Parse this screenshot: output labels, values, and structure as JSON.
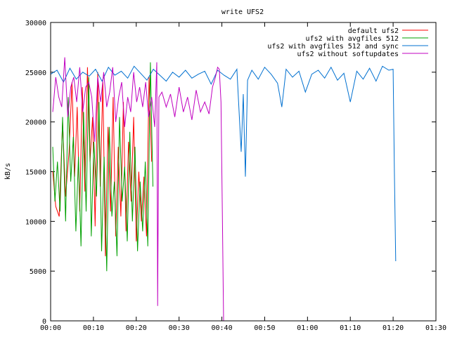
{
  "chart_data": {
    "type": "line",
    "title": "write UFS2",
    "xlabel": "",
    "ylabel": "kB/s",
    "xlim": [
      0,
      90
    ],
    "ylim": [
      0,
      30000
    ],
    "grid": false,
    "legend_position": "top-right",
    "x_ticks": [
      {
        "value": 0,
        "label": "00:00"
      },
      {
        "value": 10,
        "label": "00:10"
      },
      {
        "value": 20,
        "label": "00:20"
      },
      {
        "value": 30,
        "label": "00:30"
      },
      {
        "value": 40,
        "label": "00:40"
      },
      {
        "value": 50,
        "label": "00:50"
      },
      {
        "value": 60,
        "label": "01:00"
      },
      {
        "value": 70,
        "label": "01:10"
      },
      {
        "value": 80,
        "label": "01:20"
      },
      {
        "value": 90,
        "label": "01:30"
      }
    ],
    "y_ticks": [
      {
        "value": 0,
        "label": "0"
      },
      {
        "value": 5000,
        "label": "5000"
      },
      {
        "value": 10000,
        "label": "10000"
      },
      {
        "value": 15000,
        "label": "15000"
      },
      {
        "value": 20000,
        "label": "20000"
      },
      {
        "value": 25000,
        "label": "25000"
      },
      {
        "value": 30000,
        "label": "30000"
      }
    ],
    "series": [
      {
        "name": "default ufs2",
        "color": "#ff0000",
        "x": [
          0.5,
          1.2,
          2.0,
          2.8,
          3.5,
          4.3,
          5.0,
          5.6,
          6.2,
          6.8,
          7.4,
          8.0,
          8.6,
          9.2,
          9.8,
          10.4,
          11.0,
          11.6,
          12.2,
          12.8,
          13.4,
          14.0,
          14.6,
          15.2,
          15.8,
          16.4,
          17.0,
          17.6,
          18.2,
          18.8,
          19.4,
          20.0,
          20.6,
          21.2,
          21.8,
          22.4,
          23.0,
          23.6
        ],
        "y": [
          15000,
          11500,
          10500,
          20000,
          12500,
          17000,
          24000,
          14500,
          21500,
          11000,
          23500,
          13000,
          25500,
          16000,
          20500,
          9500,
          25000,
          13500,
          24000,
          6500,
          19500,
          11000,
          22500,
          8500,
          17500,
          10500,
          22000,
          9000,
          18000,
          12000,
          20500,
          8000,
          15000,
          10000,
          14500,
          8500,
          24500,
          16000
        ]
      },
      {
        "name": "ufs2 with avgfiles 512",
        "color": "#00a000",
        "x": [
          0.5,
          1.0,
          1.6,
          2.2,
          2.8,
          3.5,
          4.1,
          4.7,
          5.3,
          5.9,
          6.5,
          7.1,
          7.7,
          8.3,
          8.9,
          9.5,
          10.1,
          10.7,
          11.3,
          11.9,
          12.5,
          13.1,
          13.7,
          14.3,
          14.9,
          15.5,
          16.1,
          16.7,
          17.3,
          17.9,
          18.5,
          19.1,
          19.7,
          20.3,
          20.9,
          21.5,
          22.1,
          22.7,
          23.3,
          23.9
        ],
        "y": [
          17500,
          12000,
          16000,
          11000,
          20500,
          10000,
          22500,
          14000,
          18500,
          9000,
          16500,
          7500,
          21000,
          11000,
          24500,
          8500,
          18000,
          12500,
          22000,
          7000,
          16500,
          5000,
          19500,
          10500,
          14000,
          6500,
          20500,
          12000,
          15500,
          8000,
          19000,
          10000,
          17500,
          7000,
          14000,
          9000,
          16000,
          7500,
          26000,
          13500
        ]
      },
      {
        "name": "ufs2 with avgfiles 512 and sync",
        "color": "#0070d0",
        "x": [
          0,
          1.5,
          3.0,
          4.5,
          6.0,
          7.5,
          9.0,
          10.5,
          12.0,
          13.5,
          15.0,
          16.5,
          18.0,
          19.5,
          21.0,
          22.5,
          24.0,
          25.5,
          27.0,
          28.5,
          30.0,
          31.5,
          33.0,
          34.5,
          36.0,
          37.5,
          39.0,
          40.5,
          42.0,
          43.5,
          44.5,
          45.0,
          45.5,
          46.0,
          47.0,
          48.5,
          50.0,
          51.5,
          53.0,
          54.0,
          55.0,
          56.5,
          58.0,
          59.5,
          61.0,
          62.5,
          64.0,
          65.5,
          67.0,
          68.5,
          70.0,
          71.5,
          73.0,
          74.5,
          76.0,
          77.5,
          79.0,
          80.0,
          80.3,
          80.6
        ],
        "y": [
          24800,
          25200,
          24000,
          25400,
          24300,
          25000,
          24600,
          25300,
          24100,
          25500,
          24700,
          25100,
          24400,
          25600,
          24900,
          24200,
          25300,
          24700,
          24100,
          25000,
          24500,
          25200,
          24400,
          24800,
          25100,
          23800,
          25200,
          24700,
          24300,
          25300,
          17000,
          22800,
          14500,
          24200,
          25200,
          24300,
          25500,
          24800,
          23900,
          21500,
          25300,
          24500,
          25100,
          23000,
          24800,
          25200,
          24400,
          25500,
          24200,
          24900,
          22000,
          25100,
          24300,
          25400,
          24100,
          25600,
          25200,
          25300,
          15000,
          6000
        ]
      },
      {
        "name": "ufs2 without softupdates",
        "color": "#c000c0",
        "x": [
          0.5,
          1.2,
          1.9,
          2.6,
          3.3,
          4.0,
          4.7,
          5.4,
          6.1,
          6.8,
          7.5,
          8.2,
          8.9,
          9.6,
          10.3,
          11.0,
          11.7,
          12.4,
          13.1,
          13.8,
          14.5,
          15.2,
          15.9,
          16.6,
          17.3,
          18.0,
          18.7,
          19.4,
          20.1,
          20.8,
          21.5,
          22.2,
          22.9,
          23.6,
          24.3,
          24.8,
          25.0,
          25.3,
          26.0,
          27.0,
          28.0,
          29.0,
          30.0,
          31.0,
          32.0,
          33.0,
          34.0,
          35.0,
          36.0,
          37.0,
          37.8,
          38.5,
          39.0,
          39.4,
          39.8,
          40.1,
          40.4
        ],
        "y": [
          21000,
          24500,
          22500,
          21500,
          26500,
          20500,
          23500,
          24500,
          22000,
          25500,
          21000,
          23500,
          24000,
          22500,
          18000,
          24500,
          22000,
          25000,
          21500,
          23000,
          25500,
          20000,
          22500,
          24000,
          19500,
          22500,
          21000,
          25000,
          22000,
          23500,
          21500,
          24000,
          20500,
          22500,
          19500,
          26000,
          1500,
          22500,
          23000,
          21500,
          22800,
          20500,
          23500,
          21000,
          22500,
          20200,
          23200,
          21000,
          22000,
          20800,
          23500,
          24500,
          25500,
          25300,
          22000,
          11000,
          0
        ]
      }
    ]
  }
}
